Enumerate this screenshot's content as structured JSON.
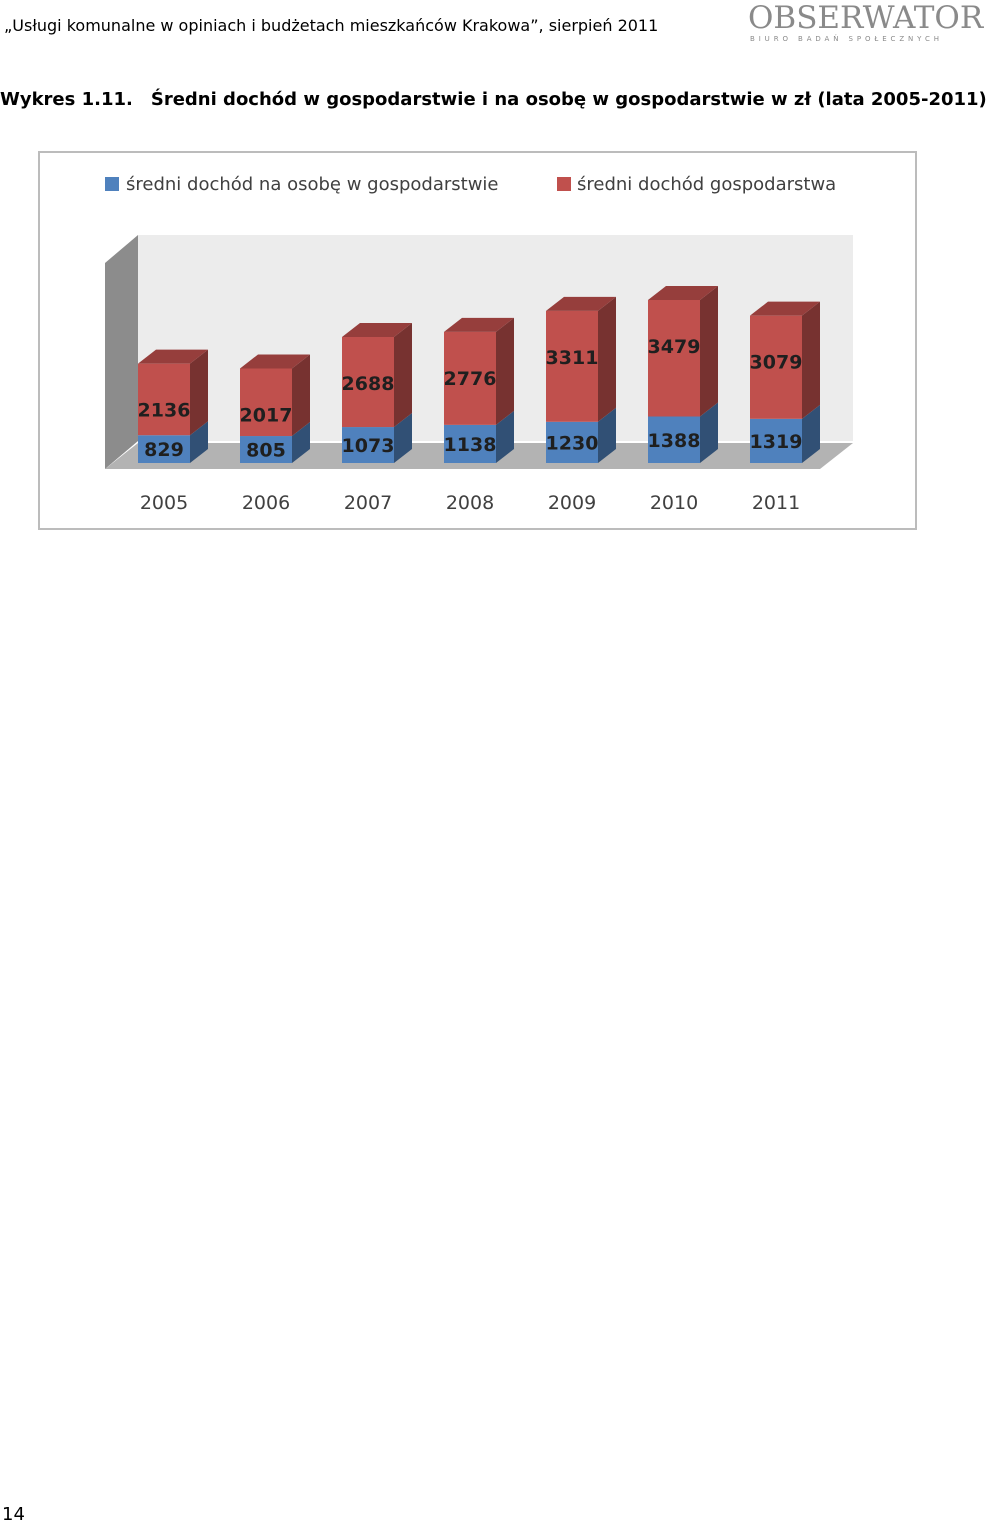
{
  "header": {
    "running_title": "„Usługi komunalne w opiniach i budżetach mieszkańców Krakowa”, sierpień 2011",
    "logo_text": "OBSERWATOR",
    "logo_subtitle": "BIURO BADAŃ SPOŁECZNYCH"
  },
  "caption": {
    "number": "Wykres 1.11.",
    "text": "Średni dochód w gospodarstwie i na osobę w gospodarstwie w zł (lata 2005-2011)"
  },
  "chart_data": {
    "type": "bar",
    "stacked": true,
    "three_d": true,
    "categories": [
      "2005",
      "2006",
      "2007",
      "2008",
      "2009",
      "2010",
      "2011"
    ],
    "series": [
      {
        "name": "średni dochód na osobę w gospodarstwie",
        "color": "#4f81bd",
        "values": [
          829,
          805,
          1073,
          1138,
          1230,
          1388,
          1319
        ]
      },
      {
        "name": "średni dochód gospodarstwa",
        "color": "#c0504d",
        "values": [
          2136,
          2017,
          2688,
          2776,
          3311,
          3479,
          3079
        ]
      }
    ],
    "legend": "top",
    "grid": false,
    "ylim": [
      0,
      5000
    ]
  },
  "footer": {
    "page_number": "14"
  }
}
